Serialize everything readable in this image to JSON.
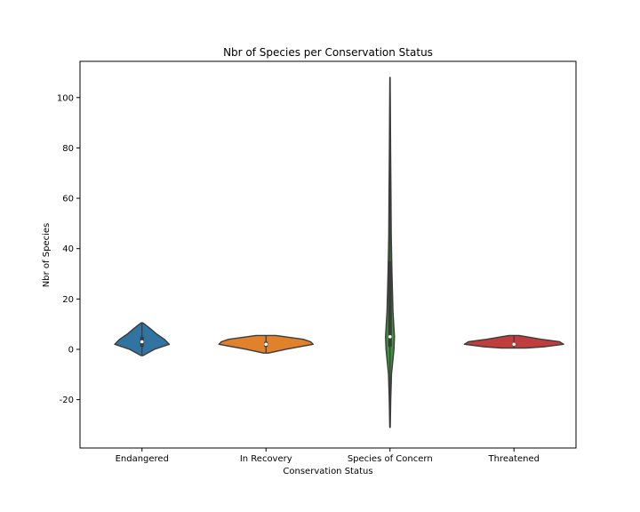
{
  "chart_data": {
    "type": "violin",
    "title": "Nbr of Species per Conservation Status",
    "xlabel": "Conservation Status",
    "ylabel": "Nbr of Species",
    "ylim": [
      -39.2,
      114.4
    ],
    "yticks": [
      -20,
      0,
      20,
      40,
      60,
      80,
      100
    ],
    "grid": false,
    "legend": "none",
    "categories": [
      "Endangered",
      "In Recovery",
      "Species of Concern",
      "Threatened"
    ],
    "colors": [
      "#3274a1",
      "#e1812c",
      "#3a923a",
      "#c03d3e"
    ],
    "series": [
      {
        "category": "Endangered",
        "min": -2.5,
        "max": 10.5,
        "median": 3,
        "q1": 1,
        "q3": 5,
        "density": [
          [
            -2.5,
            0.02
          ],
          [
            0,
            0.25
          ],
          [
            2,
            0.55
          ],
          [
            4,
            0.45
          ],
          [
            6,
            0.3
          ],
          [
            8,
            0.18
          ],
          [
            10.5,
            0.02
          ]
        ]
      },
      {
        "category": "In Recovery",
        "min": -1.5,
        "max": 5.5,
        "median": 2,
        "q1": 1,
        "q3": 3,
        "density": [
          [
            -1.5,
            0.05
          ],
          [
            0,
            0.4
          ],
          [
            2,
            0.95
          ],
          [
            3,
            0.9
          ],
          [
            4,
            0.75
          ],
          [
            5.5,
            0.2
          ]
        ]
      },
      {
        "category": "Species of Concern",
        "min": -31,
        "max": 108,
        "median": 5,
        "q1": 1,
        "q3": 35,
        "density": [
          [
            -31,
            0.005
          ],
          [
            -20,
            0.015
          ],
          [
            -10,
            0.03
          ],
          [
            0,
            0.08
          ],
          [
            5,
            0.09
          ],
          [
            15,
            0.06
          ],
          [
            30,
            0.04
          ],
          [
            45,
            0.025
          ],
          [
            60,
            0.02
          ],
          [
            80,
            0.012
          ],
          [
            100,
            0.006
          ],
          [
            108,
            0.003
          ]
        ]
      },
      {
        "category": "Threatened",
        "min": 0.5,
        "max": 5.5,
        "median": 2,
        "q1": 1.5,
        "q3": 2.5,
        "density": [
          [
            0.5,
            0.25
          ],
          [
            1,
            0.6
          ],
          [
            2,
            1.0
          ],
          [
            3,
            0.92
          ],
          [
            4,
            0.55
          ],
          [
            5,
            0.25
          ],
          [
            5.5,
            0.1
          ]
        ]
      }
    ]
  }
}
